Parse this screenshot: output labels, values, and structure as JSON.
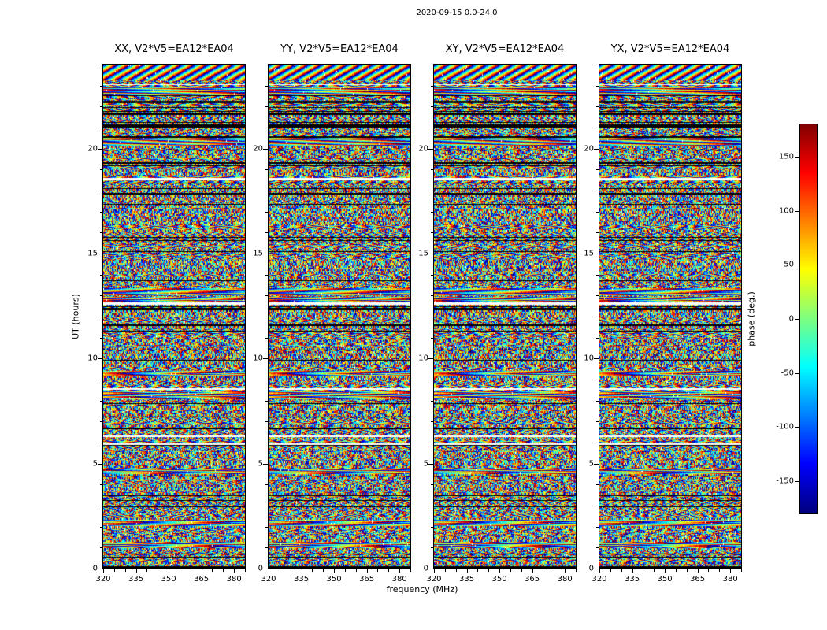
{
  "figure": {
    "title": "2020-09-15 0.0-24.0"
  },
  "chart_data": {
    "type": "heatmap",
    "description": "Interferometric visibility phase vs frequency and time for baseline EA12*EA04, four correlation products (XX, YY, XY, YX). Panels are dominated by random phase noise with flagged (black) rows, missing (white) rows, coherent phase-sweep bands and a diagonally striped band near the top.",
    "panels": [
      {
        "title": "XX, V2*V5=EA12*EA04",
        "seed": 101
      },
      {
        "title": "YY, V2*V5=EA12*EA04",
        "seed": 202
      },
      {
        "title": "XY, V2*V5=EA12*EA04",
        "seed": 303
      },
      {
        "title": "YX, V2*V5=EA12*EA04",
        "seed": 404
      }
    ],
    "xlabel": "frequency (MHz)",
    "ylabel": "UT (hours)",
    "xlim": [
      320,
      385
    ],
    "ylim": [
      0,
      24
    ],
    "x_ticks": [
      320,
      335,
      350,
      365,
      380
    ],
    "y_ticks": [
      0,
      5,
      10,
      15,
      20
    ],
    "x_minor_step": 5,
    "y_minor_step": 1,
    "colormap": "jet",
    "value_range": [
      -180,
      180
    ],
    "colorbar": {
      "label": "phase (deg.)",
      "ticks": [
        150,
        100,
        50,
        0,
        -50,
        -100,
        -150
      ]
    },
    "features": {
      "diagonal_stripe_bands": [
        [
          23.25,
          24.0
        ]
      ],
      "phase_sweep_bands": [
        [
          22.55,
          22.95
        ],
        [
          20.15,
          20.5
        ],
        [
          13.0,
          13.35
        ],
        [
          12.72,
          12.92
        ],
        [
          9.2,
          9.42
        ],
        [
          8.05,
          8.45
        ],
        [
          4.5,
          4.72
        ],
        [
          2.02,
          2.32
        ],
        [
          1.02,
          1.25
        ]
      ],
      "flagged_black_bands": [
        [
          21.6,
          21.72
        ],
        [
          21.05,
          21.15
        ],
        [
          20.52,
          20.6
        ],
        [
          19.26,
          19.34
        ],
        [
          17.82,
          17.9
        ],
        [
          12.3,
          12.42
        ],
        [
          11.55,
          11.62
        ],
        [
          6.62,
          6.7
        ],
        [
          0.0,
          0.1
        ]
      ],
      "missing_white_bands": [
        [
          23.02,
          23.06
        ],
        [
          18.5,
          18.6
        ],
        [
          12.58,
          12.66
        ],
        [
          8.5,
          8.6
        ],
        [
          6.27,
          6.35
        ],
        [
          5.9,
          5.96
        ]
      ]
    },
    "noise": {
      "structure_seed": 424242,
      "striped_row_fraction": 0.3,
      "separator_row_fraction": 0.07
    }
  }
}
